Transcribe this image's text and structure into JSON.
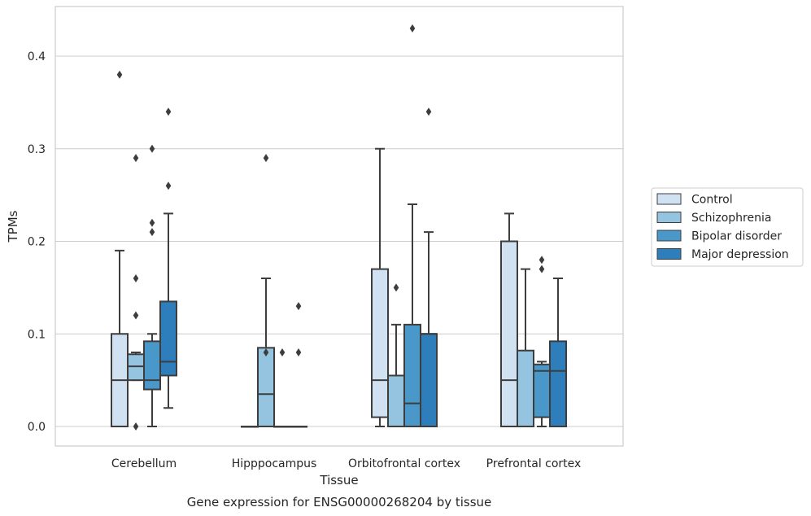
{
  "caption": "Gene expression for ENSG00000268204 by tissue",
  "chart_data": {
    "type": "box",
    "xlabel": "Tissue",
    "ylabel": "TPMs",
    "ylim": [
      -0.021,
      0.455
    ],
    "yticks": [
      0.0,
      0.1,
      0.2,
      0.3,
      0.4
    ],
    "ytick_labels": [
      "0.0",
      "0.1",
      "0.2",
      "0.3",
      "0.4"
    ],
    "grid": "horizontal",
    "legend_position": "right",
    "categories": [
      "Cerebellum",
      "Hipppocampus",
      "Orbitofrontal cortex",
      "Prefrontal cortex"
    ],
    "series": [
      {
        "name": "Control",
        "color": "#d0e1f2",
        "boxes": [
          {
            "category": "Cerebellum",
            "whislo": 0.0,
            "q1": 0.0,
            "med": 0.05,
            "q3": 0.1,
            "whishi": 0.19,
            "fliers": [
              0.38
            ]
          },
          {
            "category": "Hipppocampus",
            "whislo": 0.0,
            "q1": 0.0,
            "med": 0.0,
            "q3": 0.0,
            "whishi": 0.0,
            "fliers": []
          },
          {
            "category": "Orbitofrontal cortex",
            "whislo": 0.0,
            "q1": 0.01,
            "med": 0.05,
            "q3": 0.17,
            "whishi": 0.3,
            "fliers": []
          },
          {
            "category": "Prefrontal cortex",
            "whislo": 0.0,
            "q1": 0.0,
            "med": 0.05,
            "q3": 0.2,
            "whishi": 0.23,
            "fliers": []
          }
        ]
      },
      {
        "name": "Schizophrenia",
        "color": "#94c4df",
        "boxes": [
          {
            "category": "Cerebellum",
            "whislo": 0.05,
            "q1": 0.05,
            "med": 0.065,
            "q3": 0.078,
            "whishi": 0.08,
            "fliers": [
              0.0,
              0.12,
              0.16,
              0.29
            ]
          },
          {
            "category": "Hipppocampus",
            "whislo": 0.0,
            "q1": 0.0,
            "med": 0.035,
            "q3": 0.085,
            "whishi": 0.16,
            "fliers": [
              0.08,
              0.29
            ]
          },
          {
            "category": "Orbitofrontal cortex",
            "whislo": 0.0,
            "q1": 0.0,
            "med": 0.0,
            "q3": 0.055,
            "whishi": 0.11,
            "fliers": [
              0.15
            ]
          },
          {
            "category": "Prefrontal cortex",
            "whislo": 0.0,
            "q1": 0.0,
            "med": 0.0,
            "q3": 0.082,
            "whishi": 0.17,
            "fliers": []
          }
        ]
      },
      {
        "name": "Bipolar disorder",
        "color": "#4a98c9",
        "boxes": [
          {
            "category": "Cerebellum",
            "whislo": 0.0,
            "q1": 0.04,
            "med": 0.05,
            "q3": 0.092,
            "whishi": 0.1,
            "fliers": [
              0.21,
              0.22,
              0.3
            ]
          },
          {
            "category": "Hipppocampus",
            "whislo": 0.0,
            "q1": 0.0,
            "med": 0.0,
            "q3": 0.0,
            "whishi": 0.0,
            "fliers": [
              0.08
            ]
          },
          {
            "category": "Orbitofrontal cortex",
            "whislo": 0.0,
            "q1": 0.0,
            "med": 0.025,
            "q3": 0.11,
            "whishi": 0.24,
            "fliers": [
              0.43
            ]
          },
          {
            "category": "Prefrontal cortex",
            "whislo": 0.0,
            "q1": 0.01,
            "med": 0.06,
            "q3": 0.067,
            "whishi": 0.07,
            "fliers": [
              0.17,
              0.18
            ]
          }
        ]
      },
      {
        "name": "Major depression",
        "color": "#2e7ebc",
        "boxes": [
          {
            "category": "Cerebellum",
            "whislo": 0.02,
            "q1": 0.055,
            "med": 0.07,
            "q3": 0.135,
            "whishi": 0.23,
            "fliers": [
              0.26,
              0.34
            ]
          },
          {
            "category": "Hipppocampus",
            "whislo": 0.0,
            "q1": 0.0,
            "med": 0.0,
            "q3": 0.0,
            "whishi": 0.0,
            "fliers": [
              0.08,
              0.13
            ]
          },
          {
            "category": "Orbitofrontal cortex",
            "whislo": 0.0,
            "q1": 0.0,
            "med": 0.1,
            "q3": 0.1,
            "whishi": 0.21,
            "fliers": [
              0.34
            ]
          },
          {
            "category": "Prefrontal cortex",
            "whislo": 0.0,
            "q1": 0.0,
            "med": 0.06,
            "q3": 0.092,
            "whishi": 0.16,
            "fliers": []
          }
        ]
      }
    ]
  }
}
